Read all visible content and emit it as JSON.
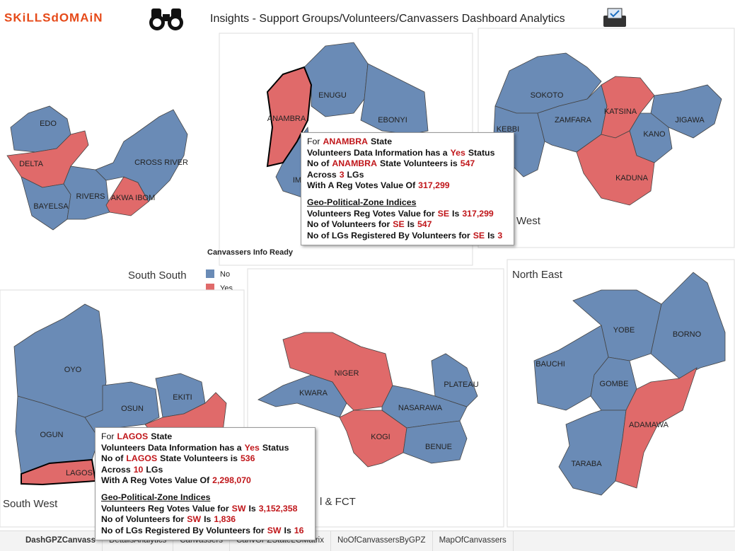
{
  "header": {
    "logo": "SKiLLSdOMAiN",
    "title": "Insights - Support Groups/Volunteers/Canvassers Dashboard Analytics"
  },
  "panels": [
    {
      "title": "South South",
      "states": [
        "EDO",
        "DELTA",
        "BAYELSA",
        "RIVERS",
        "AKWA IBOM",
        "CROSS RIVER"
      ]
    },
    {
      "states": [
        "ENUGU",
        "EBONYI",
        "ANAMBRA",
        "IM"
      ]
    },
    {
      "title": "West",
      "states": [
        "SOKOTO",
        "ZAMFARA",
        "KATSINA",
        "JIGAWA",
        "KEBBI",
        "KANO",
        "KADUNA"
      ]
    },
    {
      "title": "South West",
      "states": [
        "OYO",
        "OSUN",
        "EKITI",
        "OGUN",
        "LAGOS"
      ]
    },
    {
      "title": "l & FCT",
      "states": [
        "NIGER",
        "KWARA",
        "PLATEAU",
        "NASARAWA",
        "KOGI",
        "BENUE"
      ]
    },
    {
      "title": "North East",
      "states": [
        "YOBE",
        "BORNO",
        "BAUCHI",
        "GOMBE",
        "ADAMAWA",
        "TARABA"
      ]
    }
  ],
  "legend": {
    "title": "Canvassers Info Ready",
    "items": [
      "No",
      "Yes"
    ]
  },
  "tooltips": [
    {
      "lines": [
        [
          "For",
          "ANAMBRA",
          "State"
        ],
        [
          "Volunteers Data Information  has  a",
          "Yes",
          "Status"
        ],
        [
          "No of",
          "ANAMBRA",
          "State Volunteers is",
          "547"
        ],
        [
          "Across",
          "3",
          "LGs"
        ],
        [
          "With A Reg Votes Value Of",
          "317,299"
        ]
      ],
      "heading": "Geo-Political-Zone Indices",
      "zone_lines": [
        [
          "Volunteers Reg Votes Value for",
          "SE",
          "Is",
          "317,299"
        ],
        [
          "No of Volunteers for",
          "SE",
          "Is",
          "547"
        ],
        [
          "No of LGs Registered By Volunteers for",
          "SE",
          "Is",
          "3"
        ]
      ]
    },
    {
      "lines": [
        [
          "For",
          "LAGOS",
          "State"
        ],
        [
          "Volunteers Data Information  has  a",
          "Yes",
          "Status"
        ],
        [
          "No of",
          "LAGOS",
          "State Volunteers is",
          "536"
        ],
        [
          "Across",
          "10",
          "LGs"
        ],
        [
          "With A Reg Votes Value Of",
          "2,298,070"
        ]
      ],
      "heading": "Geo-Political-Zone Indices",
      "zone_lines": [
        [
          "Volunteers Reg Votes Value for",
          "SW",
          "Is",
          "3,152,358"
        ],
        [
          "No of Volunteers for",
          "SW",
          "Is",
          "1,836"
        ],
        [
          "No of LGs Registered By Volunteers for",
          "SW",
          "Is",
          "16"
        ]
      ]
    }
  ],
  "tabs": [
    "DashGPZCanvass",
    "DetailsAnalytics",
    "Canvassers",
    "CanvGPZStateLGMatrix",
    "NoOfCanvassersByGPZ",
    "MapOfCanvassers"
  ]
}
